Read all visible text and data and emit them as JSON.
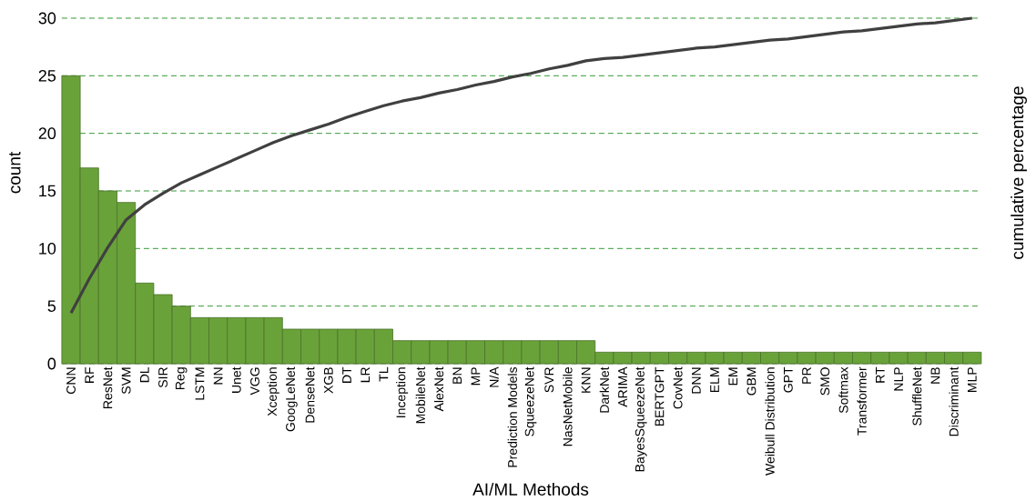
{
  "chart_data": {
    "type": "bar",
    "xlabel": "AI/ML Methods",
    "ylabel": "count",
    "y2label": "cumulative percentage",
    "categories": [
      "CNN",
      "RF",
      "ResNet",
      "SVM",
      "DL",
      "SIR",
      "Reg",
      "LSTM",
      "NN",
      "Unet",
      "VGG",
      "Xception",
      "GoogLeNet",
      "DenseNet",
      "XGB",
      "DT",
      "LR",
      "TL",
      "Inception",
      "MobileNet",
      "AlexNet",
      "BN",
      "MP",
      "N/A",
      "Prediction Models",
      "SqueezeNet",
      "SVR",
      "NasNetMobile",
      "KNN",
      "DarkNet",
      "ARIMA",
      "BayesSqueezeNet",
      "BERTGPT",
      "CovNet",
      "DNN",
      "ELM",
      "EM",
      "GBM",
      "Weibull Distribution",
      "GPT",
      "PR",
      "SMO",
      "Softmax",
      "Transformer",
      "RT",
      "NLP",
      "ShuffleNet",
      "NB",
      "Discriminant",
      "MLP"
    ],
    "series": [
      {
        "color": "#6aa23a",
        "values": [
          25,
          17,
          15,
          14,
          7,
          6,
          5,
          4,
          4,
          4,
          4,
          4,
          3,
          3,
          3,
          3,
          3,
          3,
          2,
          2,
          2,
          2,
          2,
          2,
          2,
          2,
          2,
          2,
          2,
          1,
          1,
          1,
          1,
          1,
          1,
          1,
          1,
          1,
          1,
          1,
          1,
          1,
          1,
          1,
          1,
          1,
          1,
          1,
          1,
          1
        ]
      },
      {
        "type": "line",
        "color": "#404040",
        "values": [
          4.4,
          7.4,
          10.1,
          12.5,
          13.8,
          14.8,
          15.7,
          16.4,
          17.1,
          17.8,
          18.5,
          19.2,
          19.8,
          20.3,
          20.8,
          21.4,
          21.9,
          22.4,
          22.8,
          23.1,
          23.5,
          23.8,
          24.2,
          24.5,
          24.9,
          25.2,
          25.6,
          25.9,
          26.3,
          26.5,
          26.6,
          26.8,
          27.0,
          27.2,
          27.4,
          27.5,
          27.7,
          27.9,
          28.1,
          28.2,
          28.4,
          28.6,
          28.8,
          28.9,
          29.1,
          29.3,
          29.5,
          29.6,
          29.8,
          30.0
        ]
      }
    ],
    "ylim": [
      0,
      30
    ],
    "yticks": [
      0,
      5,
      10,
      15,
      20,
      25,
      30
    ],
    "grid": "y",
    "legend": false,
    "marker": "none"
  }
}
